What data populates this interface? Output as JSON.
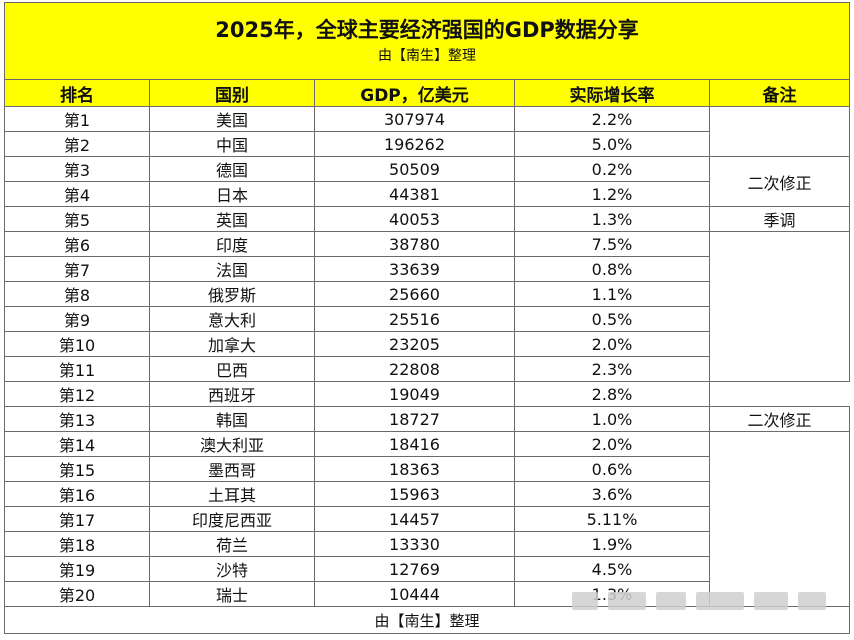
{
  "title": "2025年，全球主要经济强国的GDP数据分享",
  "subtitle": "由【南生】整理",
  "headers": [
    "排名",
    "国别",
    "GDP，亿美元",
    "实际增长率",
    "备注"
  ],
  "rows": [
    {
      "rank": "第1",
      "country": "美国",
      "gdp": "307974",
      "growth": "2.2%"
    },
    {
      "rank": "第2",
      "country": "中国",
      "gdp": "196262",
      "growth": "5.0%"
    },
    {
      "rank": "第3",
      "country": "德国",
      "gdp": "50509",
      "growth": "0.2%"
    },
    {
      "rank": "第4",
      "country": "日本",
      "gdp": "44381",
      "growth": "1.2%"
    },
    {
      "rank": "第5",
      "country": "英国",
      "gdp": "40053",
      "growth": "1.3%"
    },
    {
      "rank": "第6",
      "country": "印度",
      "gdp": "38780",
      "growth": "7.5%"
    },
    {
      "rank": "第7",
      "country": "法国",
      "gdp": "33639",
      "growth": "0.8%"
    },
    {
      "rank": "第8",
      "country": "俄罗斯",
      "gdp": "25660",
      "growth": "1.1%"
    },
    {
      "rank": "第9",
      "country": "意大利",
      "gdp": "25516",
      "growth": "0.5%"
    },
    {
      "rank": "第10",
      "country": "加拿大",
      "gdp": "23205",
      "growth": "2.0%"
    },
    {
      "rank": "第11",
      "country": "巴西",
      "gdp": "22808",
      "growth": "2.3%"
    },
    {
      "rank": "第12",
      "country": "西班牙",
      "gdp": "19049",
      "growth": "2.8%"
    },
    {
      "rank": "第13",
      "country": "韩国",
      "gdp": "18727",
      "growth": "1.0%"
    },
    {
      "rank": "第14",
      "country": "澳大利亚",
      "gdp": "18416",
      "growth": "2.0%"
    },
    {
      "rank": "第15",
      "country": "墨西哥",
      "gdp": "18363",
      "growth": "0.6%"
    },
    {
      "rank": "第16",
      "country": "土耳其",
      "gdp": "15963",
      "growth": "3.6%"
    },
    {
      "rank": "第17",
      "country": "印度尼西亚",
      "gdp": "14457",
      "growth": "5.11%"
    },
    {
      "rank": "第18",
      "country": "荷兰",
      "gdp": "13330",
      "growth": "1.9%"
    },
    {
      "rank": "第19",
      "country": "沙特",
      "gdp": "12769",
      "growth": "4.5%"
    },
    {
      "rank": "第20",
      "country": "瑞士",
      "gdp": "10444",
      "growth": "1.3%"
    }
  ],
  "notes": {
    "note_1": "二次修正",
    "note_2": "季调",
    "note_3": "二次修正"
  },
  "footer": "由【南生】整理",
  "colors": {
    "header_bg": "#ffff00",
    "border": "#6b6b6b"
  }
}
